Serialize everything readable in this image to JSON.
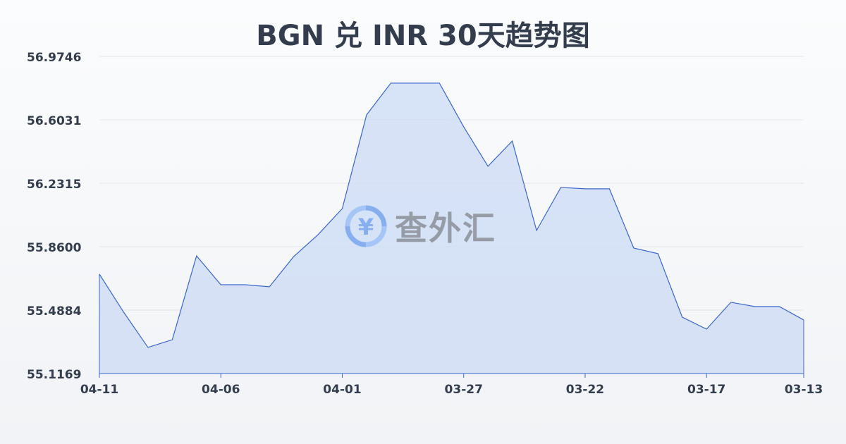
{
  "chart_data": {
    "type": "area",
    "title": "BGN 兑 INR 30天趋势图",
    "xlabel": "",
    "ylabel": "",
    "x": [
      "04-11",
      "04-10",
      "04-09",
      "04-08",
      "04-07",
      "04-06",
      "04-05",
      "04-04",
      "04-03",
      "04-02",
      "04-01",
      "03-31",
      "03-30",
      "03-29",
      "03-28",
      "03-27",
      "03-26",
      "03-25",
      "03-24",
      "03-23",
      "03-22",
      "03-21",
      "03-20",
      "03-19",
      "03-18",
      "03-17",
      "03-16",
      "03-15",
      "03-14",
      "03-13"
    ],
    "values": [
      55.699,
      55.476,
      55.27,
      55.315,
      55.806,
      55.637,
      55.637,
      55.625,
      55.802,
      55.93,
      56.083,
      56.632,
      56.818,
      56.818,
      56.818,
      56.562,
      56.331,
      56.479,
      55.955,
      56.207,
      56.199,
      56.199,
      55.852,
      55.819,
      55.447,
      55.377,
      55.534,
      55.509,
      55.509,
      55.431
    ],
    "x_tick_labels": [
      "04-11",
      "04-06",
      "04-01",
      "03-27",
      "03-22",
      "03-17",
      "03-13"
    ],
    "y_tick_labels": [
      "56.9746",
      "56.6031",
      "56.2315",
      "55.8600",
      "55.4884",
      "55.1169"
    ],
    "ylim": [
      55.1169,
      56.9746
    ],
    "grid": true,
    "colors": {
      "line": "#3a66cc",
      "fill": "#c9d8f5",
      "grid": "#e3e6ea"
    }
  },
  "watermark": {
    "text": "查外汇",
    "icon": "yen-exchange-icon"
  }
}
